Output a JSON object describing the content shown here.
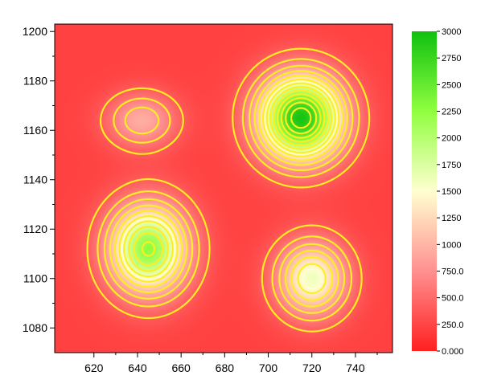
{
  "chart_data": {
    "type": "heatmap",
    "title": "",
    "xlabel": "",
    "ylabel": "",
    "xlim": [
      602,
      757
    ],
    "ylim": [
      1070,
      1203
    ],
    "x_ticks": [
      620,
      640,
      660,
      680,
      700,
      720,
      740
    ],
    "y_ticks": [
      1080,
      1100,
      1120,
      1140,
      1160,
      1180,
      1200
    ],
    "x_tick_labels": [
      "620",
      "640",
      "660",
      "680",
      "700",
      "720",
      "740"
    ],
    "y_tick_labels": [
      "1080",
      "1100",
      "1120",
      "1140",
      "1160",
      "1180",
      "1200"
    ],
    "z_range": [
      0,
      3000
    ],
    "colormap": [
      "#ff2020",
      "#ff9090",
      "#ffffd0",
      "#90ff40",
      "#10c010"
    ],
    "contour_color": "#ffee22",
    "colorbar": {
      "placement": "right",
      "tick_values": [
        0,
        250,
        500,
        750,
        1000,
        1250,
        1500,
        1750,
        2000,
        2250,
        2500,
        2750,
        3000
      ],
      "tick_labels": [
        "0.000",
        "250.0",
        "500.0",
        "750.0",
        "1000",
        "1250",
        "1500",
        "1750",
        "2000",
        "2250",
        "2500",
        "2750",
        "3000"
      ]
    },
    "peaks": [
      {
        "x": 715,
        "y": 1165,
        "value": 2950,
        "sx": 19,
        "sy": 17
      },
      {
        "x": 645,
        "y": 1112,
        "value": 2250,
        "sx": 18,
        "sy": 18
      },
      {
        "x": 720,
        "y": 1100,
        "value": 1600,
        "sx": 16,
        "sy": 15
      },
      {
        "x": 642,
        "y": 1164,
        "value": 950,
        "sx": 16,
        "sy": 11
      }
    ],
    "background_value": 220
  }
}
